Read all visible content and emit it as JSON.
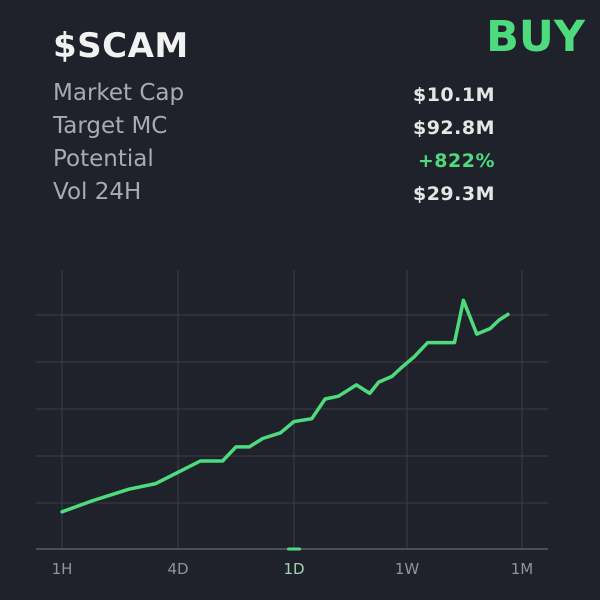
{
  "header": {
    "ticker": "$SCAM",
    "action": "BUY"
  },
  "stats": [
    {
      "label": "Market Cap",
      "value": "$10.1M"
    },
    {
      "label": "Target MC",
      "value": "$92.8M"
    },
    {
      "label": "Potential",
      "value": "+822%",
      "highlight": true
    },
    {
      "label": "Vol 24H",
      "value": "$29.3M"
    }
  ],
  "colors": {
    "background": "#1f222b",
    "accent": "#4ddb7e",
    "label": "#a8abb2",
    "value": "#e6e6e6",
    "grid": "#3a3e47"
  },
  "chart_data": {
    "type": "line",
    "title": "",
    "xlabel": "",
    "ylabel": "",
    "tick_labels": [
      "1H",
      "4D",
      "1D",
      "1W",
      "1M"
    ],
    "selected_timeframe": "1D",
    "grid": true,
    "series": [
      {
        "x": [
          0.0,
          0.07,
          0.15,
          0.21,
          0.26,
          0.31,
          0.36,
          0.39,
          0.42,
          0.45,
          0.49,
          0.52,
          0.56,
          0.59,
          0.62,
          0.66,
          0.69,
          0.71,
          0.74,
          0.76,
          0.79,
          0.82,
          0.86,
          0.88,
          0.9,
          0.93,
          0.96,
          0.98,
          1.0
        ],
        "y": [
          0.1,
          0.14,
          0.18,
          0.2,
          0.24,
          0.28,
          0.28,
          0.33,
          0.33,
          0.36,
          0.38,
          0.42,
          0.43,
          0.5,
          0.51,
          0.55,
          0.52,
          0.56,
          0.58,
          0.61,
          0.65,
          0.7,
          0.7,
          0.7,
          0.85,
          0.73,
          0.75,
          0.78,
          0.8
        ]
      }
    ]
  }
}
